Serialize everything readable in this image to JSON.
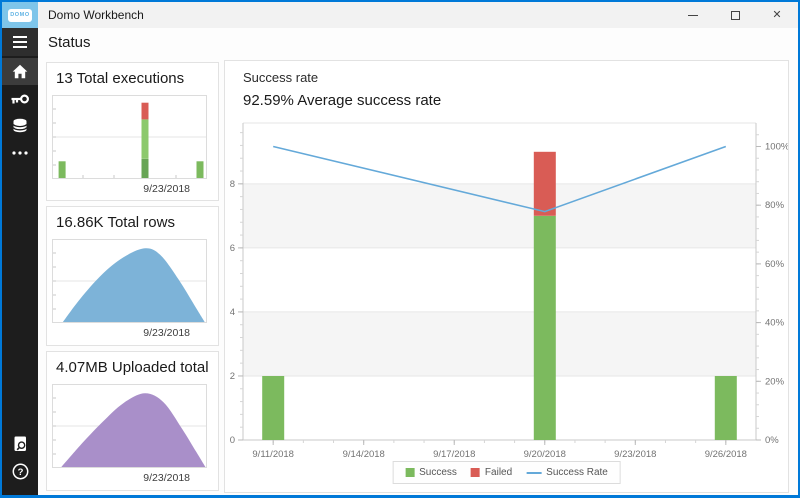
{
  "window": {
    "title": "Domo Workbench"
  },
  "titlebar": {
    "logo_text": "DOMO",
    "controls": {
      "minimize": "minimize",
      "maximize": "maximize",
      "close": "close"
    }
  },
  "page": {
    "header": "Status"
  },
  "sidebar": {
    "items": [
      "menu",
      "home",
      "key",
      "database",
      "more"
    ],
    "active_item": "home",
    "bottom_items": [
      "logs-search",
      "help"
    ]
  },
  "cards": [
    {
      "title": "13 Total executions",
      "date": "9/23/2018"
    },
    {
      "title": "16.86K Total rows",
      "date": "9/23/2018"
    },
    {
      "title": "4.07MB Uploaded total",
      "date": "9/23/2018"
    }
  ],
  "main": {
    "title": "Success rate",
    "subtitle": "92.59% Average success rate",
    "legend": {
      "success": "Success",
      "failed": "Failed",
      "rate": "Success Rate"
    }
  },
  "colors": {
    "accent": "#0079d8",
    "success": "#7cba5e",
    "success_light": "#8cc96d",
    "success_dark": "#68a556",
    "failed": "#d95c55",
    "rate_line": "#64a9d9",
    "rows_area": "#7db3d8",
    "uploaded_area": "#a98fc9"
  },
  "chart_data": [
    {
      "id": "total-executions",
      "type": "bar",
      "title": "13 Total executions",
      "x_tick_label": "9/23/2018",
      "ylim": [
        0,
        9.8
      ],
      "gridlines_frac": [
        0.5
      ],
      "bars": [
        {
          "x_frac": 0.065,
          "segments": [
            {
              "name": "Success",
              "value": 2,
              "color": "#7cba5e"
            }
          ]
        },
        {
          "x_frac": 0.6,
          "segments": [
            {
              "name": "Success",
              "value": 2.3,
              "color": "#68a556"
            },
            {
              "name": "Success",
              "value": 4.7,
              "color": "#8cc96d"
            },
            {
              "name": "Failed",
              "value": 2,
              "color": "#d95c55"
            }
          ]
        },
        {
          "x_frac": 0.955,
          "segments": [
            {
              "name": "Success",
              "value": 2,
              "color": "#7cba5e"
            }
          ]
        }
      ]
    },
    {
      "id": "total-rows",
      "type": "area",
      "title": "16.86K Total rows",
      "x_tick_label": "9/23/2018",
      "color": "#7db3d8",
      "gridlines_frac": [
        0.5
      ],
      "points": [
        [
          0.07,
          0
        ],
        [
          0.18,
          0.3
        ],
        [
          0.32,
          0.62
        ],
        [
          0.46,
          0.85
        ],
        [
          0.6,
          0.97
        ],
        [
          0.7,
          0.88
        ],
        [
          0.82,
          0.55
        ],
        [
          0.91,
          0.25
        ],
        [
          0.985,
          0
        ]
      ]
    },
    {
      "id": "uploaded-total",
      "type": "area",
      "title": "4.07MB Uploaded total",
      "x_tick_label": "9/23/2018",
      "color": "#a98fc9",
      "gridlines_frac": [
        0.5
      ],
      "points": [
        [
          0.06,
          0
        ],
        [
          0.18,
          0.28
        ],
        [
          0.32,
          0.58
        ],
        [
          0.46,
          0.84
        ],
        [
          0.6,
          0.97
        ],
        [
          0.72,
          0.85
        ],
        [
          0.84,
          0.5
        ],
        [
          0.93,
          0.2
        ],
        [
          0.99,
          0
        ]
      ]
    },
    {
      "id": "success-rate",
      "type": "combo",
      "title": "Success rate",
      "subtitle": "92.59% Average success rate",
      "x_axis": {
        "tick_labels": [
          {
            "day": 0,
            "label": "9/11/2018"
          },
          {
            "day": 3,
            "label": "9/14/2018"
          },
          {
            "day": 6,
            "label": "9/17/2018"
          },
          {
            "day": 9,
            "label": "9/20/2018"
          },
          {
            "day": 12,
            "label": "9/23/2018"
          },
          {
            "day": 15,
            "label": "9/26/2018"
          }
        ],
        "day_span": 15,
        "pad_days": 1
      },
      "left_axis": {
        "ticks": [
          0,
          2,
          4,
          6,
          8
        ],
        "max": 9.9,
        "minor_step": 0.4
      },
      "right_axis": {
        "ticks": [
          0,
          20,
          40,
          60,
          80,
          100
        ],
        "max": 108,
        "minor_step": 4,
        "suffix": "%"
      },
      "bands": [
        [
          2,
          4
        ],
        [
          6,
          8
        ]
      ],
      "series": {
        "bars": [
          {
            "day": 0,
            "date": "9/11/2018",
            "success": 2,
            "failed": 0
          },
          {
            "day": 9,
            "date": "9/20/2018",
            "success": 7,
            "failed": 2
          },
          {
            "day": 15,
            "date": "9/26/2018",
            "success": 2,
            "failed": 0
          }
        ],
        "line": [
          {
            "day": 0,
            "pct": 100
          },
          {
            "day": 9,
            "pct": 77.8
          },
          {
            "day": 15,
            "pct": 100
          }
        ]
      },
      "colors": {
        "success": "#7cba5e",
        "failed": "#d95c55",
        "rate": "#64a9d9"
      },
      "legend": [
        "Success",
        "Failed",
        "Success Rate"
      ]
    }
  ]
}
